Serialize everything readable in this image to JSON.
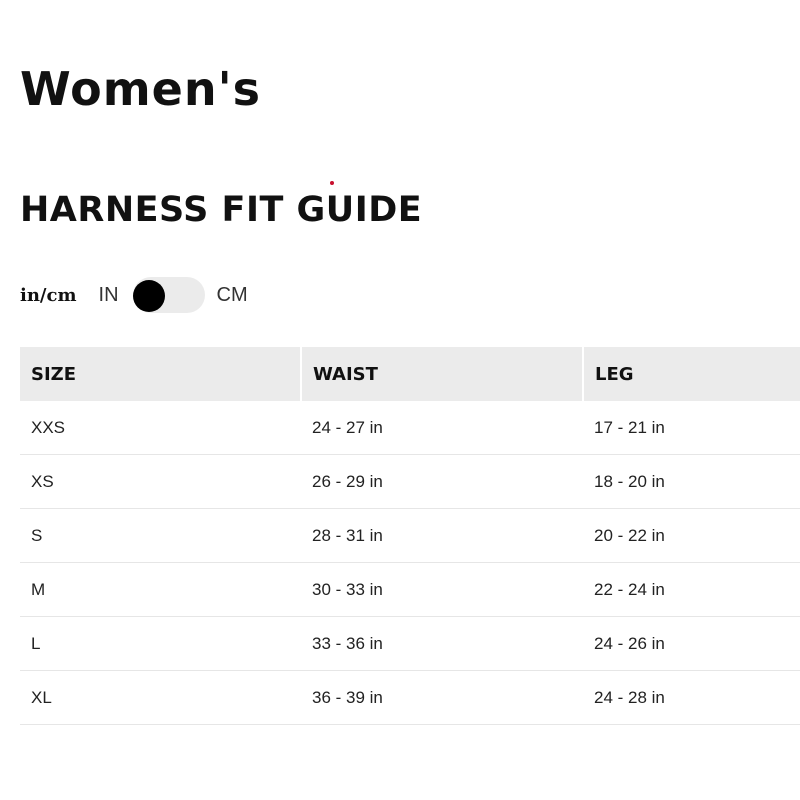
{
  "title": "Women's",
  "subtitle": "HARNESS FIT GUIDE",
  "unit_toggle": {
    "label": "in/cm",
    "option_left": "IN",
    "option_right": "CM",
    "selected": "IN"
  },
  "table": {
    "headers": [
      "SIZE",
      "WAIST",
      "LEG"
    ],
    "rows": [
      [
        "XXS",
        "24 - 27 in",
        "17 - 21 in"
      ],
      [
        "XS",
        "26 - 29 in",
        "18 - 20 in"
      ],
      [
        "S",
        "28 - 31 in",
        "20 - 22 in"
      ],
      [
        "M",
        "30 - 33 in",
        "22 - 24 in"
      ],
      [
        "L",
        "33 - 36 in",
        "24 - 26 in"
      ],
      [
        "XL",
        "36 - 39 in",
        "24 - 28 in"
      ]
    ]
  },
  "colors": {
    "header_bg": "#ebebeb",
    "toggle_knob": "#000000",
    "accent_dot": "#c8102e"
  }
}
